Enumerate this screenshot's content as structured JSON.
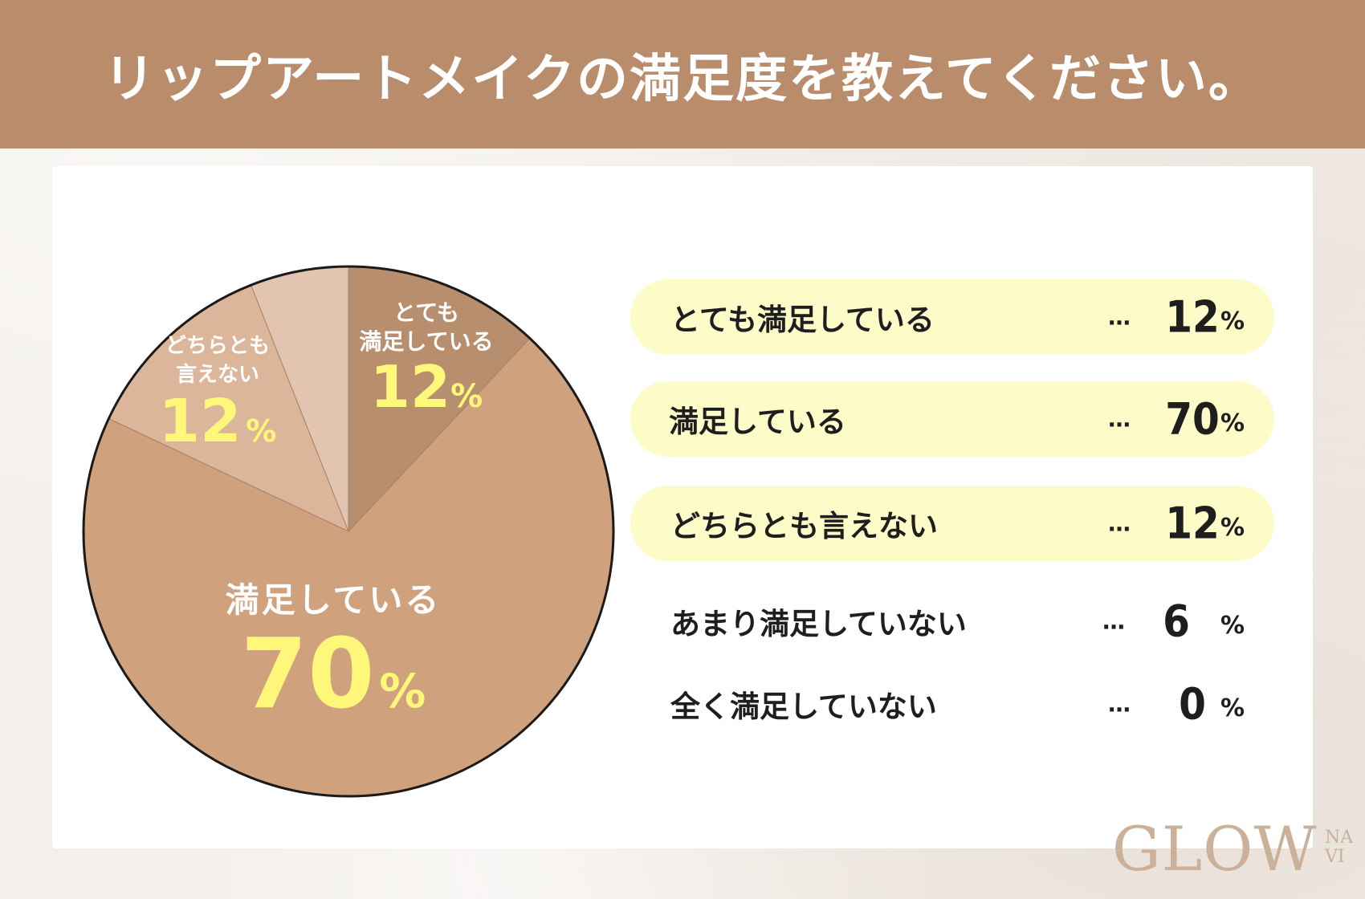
{
  "header": {
    "title": "リップアートメイクの満足度を教えてください。"
  },
  "colors": {
    "header_bg": "#b98d6c",
    "slice_very_satisfied": "#b78f6e",
    "slice_satisfied": "#d0a17d",
    "slice_neutral": "#dcb69a",
    "slice_not_very": "#e2c4b1",
    "label_value": "#fff77a",
    "legend_highlight": "#fdfbc8"
  },
  "pie_labels": {
    "very_satisfied": {
      "line1": "とても",
      "line2": "満足している",
      "value": "12",
      "unit": "%"
    },
    "neutral": {
      "line1": "どちらとも",
      "line2": "言えない",
      "value": "12",
      "unit": "%"
    },
    "satisfied": {
      "line1": "満足している",
      "value": "70",
      "unit": "%"
    }
  },
  "legend": [
    {
      "label": "とても満足している",
      "dots": "…",
      "value": "12",
      "unit": "%"
    },
    {
      "label": "満足している",
      "dots": "…",
      "value": "70",
      "unit": "%"
    },
    {
      "label": "どちらとも言えない",
      "dots": "…",
      "value": "12",
      "unit": "%"
    },
    {
      "label": "あまり満足していない",
      "dots": "…",
      "value": "6",
      "unit": "%"
    },
    {
      "label": "全く満足していない",
      "dots": "…",
      "value": "0",
      "unit": "%"
    }
  ],
  "logo": {
    "main": "GLOW",
    "sub_top": "NA",
    "sub_bottom": "VI"
  },
  "chart_data": {
    "type": "pie",
    "title": "リップアートメイクの満足度を教えてください。",
    "categories": [
      "とても満足している",
      "満足している",
      "どちらとも言えない",
      "あまり満足していない",
      "全く満足していない"
    ],
    "values": [
      12,
      70,
      12,
      6,
      0
    ],
    "unit": "%",
    "start_angle": "12 o'clock, clockwise",
    "legend": "right"
  }
}
